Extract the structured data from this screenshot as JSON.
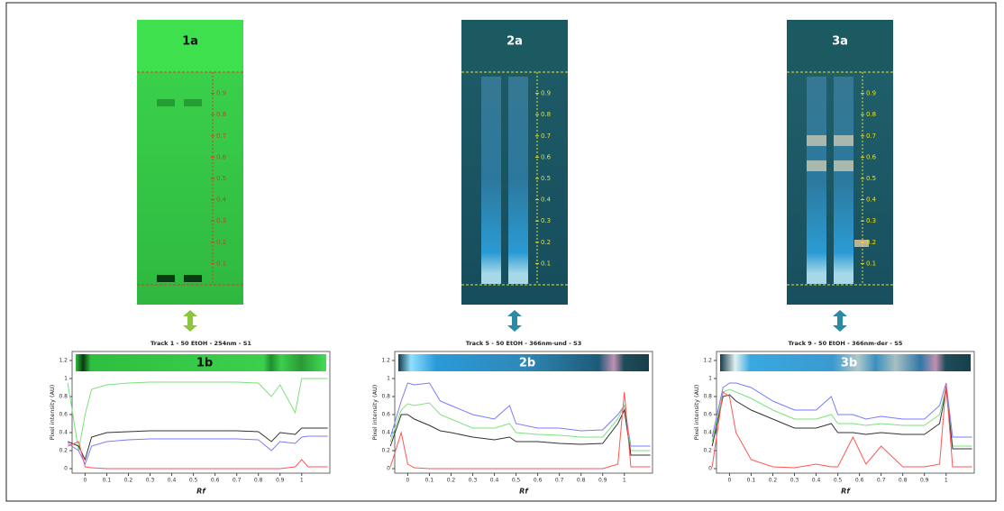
{
  "plates": [
    {
      "label": "1a",
      "rf_ticks": [
        0.1,
        0.2,
        0.3,
        0.4,
        0.5,
        0.6,
        0.7,
        0.8,
        0.9
      ],
      "scale_color": "#d83a2a"
    },
    {
      "label": "2a",
      "rf_ticks": [
        0.1,
        0.2,
        0.3,
        0.4,
        0.5,
        0.6,
        0.7,
        0.8,
        0.9
      ],
      "scale_color": "#e8e030"
    },
    {
      "label": "3a",
      "rf_ticks": [
        0.1,
        0.2,
        0.3,
        0.4,
        0.5,
        0.6,
        0.7,
        0.8,
        0.9
      ],
      "scale_color": "#e8e030"
    }
  ],
  "chart_data": [
    {
      "type": "line",
      "title": "Track 1 - 50 EtOH - 254nm - S1",
      "panel_label": "1b",
      "ylabel": "Pixel intensity (AU)",
      "xlabel": "Rf",
      "xlim": [
        -0.06,
        1.13
      ],
      "ylim": [
        -0.05,
        1.3
      ],
      "xticks": [
        0,
        0.1,
        0.2,
        0.3,
        0.4,
        0.5,
        0.6,
        0.7,
        0.8,
        0.9,
        1
      ],
      "yticks": [
        0,
        0.2,
        0.4,
        0.6,
        0.8,
        1,
        1.2
      ],
      "x": [
        -0.08,
        -0.03,
        0,
        0.03,
        0.1,
        0.2,
        0.3,
        0.4,
        0.5,
        0.6,
        0.7,
        0.8,
        0.86,
        0.9,
        0.97,
        1,
        1.03,
        1.12
      ],
      "series": [
        {
          "color": "#7ee07e",
          "values": [
            0.95,
            0.2,
            0.6,
            0.88,
            0.93,
            0.95,
            0.96,
            0.96,
            0.96,
            0.96,
            0.96,
            0.95,
            0.8,
            0.93,
            0.62,
            1.0,
            1.0,
            1.0
          ]
        },
        {
          "color": "#333333",
          "values": [
            0.3,
            0.25,
            0.1,
            0.35,
            0.4,
            0.41,
            0.42,
            0.42,
            0.42,
            0.42,
            0.42,
            0.41,
            0.3,
            0.4,
            0.38,
            0.45,
            0.45,
            0.45
          ]
        },
        {
          "color": "#7a7aff",
          "values": [
            0.28,
            0.2,
            0.05,
            0.25,
            0.3,
            0.32,
            0.33,
            0.33,
            0.33,
            0.33,
            0.33,
            0.32,
            0.2,
            0.3,
            0.28,
            0.35,
            0.36,
            0.36
          ]
        },
        {
          "color": "#ff5555",
          "values": [
            0.25,
            0.3,
            0.02,
            0.01,
            0,
            0,
            0,
            0,
            0,
            0,
            0,
            0,
            0,
            0,
            0.02,
            0.1,
            0.02,
            0.02
          ]
        }
      ]
    },
    {
      "type": "line",
      "title": "Track 5 - 50 EtOH - 366nm-und - S3",
      "panel_label": "2b",
      "ylabel": "Pixel intensity (AU)",
      "xlabel": "Rf",
      "xlim": [
        -0.06,
        1.13
      ],
      "ylim": [
        -0.05,
        1.3
      ],
      "xticks": [
        0,
        0.1,
        0.2,
        0.3,
        0.4,
        0.5,
        0.6,
        0.7,
        0.8,
        0.9,
        1
      ],
      "yticks": [
        0,
        0.2,
        0.4,
        0.6,
        0.8,
        1,
        1.2
      ],
      "x": [
        -0.08,
        -0.03,
        0,
        0.03,
        0.1,
        0.15,
        0.2,
        0.3,
        0.4,
        0.47,
        0.5,
        0.6,
        0.7,
        0.8,
        0.9,
        0.97,
        1,
        1.03,
        1.12
      ],
      "series": [
        {
          "color": "#7a7aff",
          "values": [
            0.35,
            0.75,
            0.95,
            0.93,
            0.95,
            0.75,
            0.7,
            0.6,
            0.55,
            0.7,
            0.5,
            0.45,
            0.45,
            0.42,
            0.43,
            0.6,
            0.7,
            0.25,
            0.25
          ]
        },
        {
          "color": "#7ee07e",
          "values": [
            0.3,
            0.65,
            0.72,
            0.7,
            0.73,
            0.6,
            0.55,
            0.45,
            0.45,
            0.5,
            0.4,
            0.38,
            0.37,
            0.35,
            0.35,
            0.55,
            0.7,
            0.2,
            0.2
          ]
        },
        {
          "color": "#333333",
          "values": [
            0.25,
            0.6,
            0.6,
            0.55,
            0.48,
            0.42,
            0.4,
            0.35,
            0.32,
            0.35,
            0.3,
            0.3,
            0.28,
            0.27,
            0.28,
            0.5,
            0.65,
            0.15,
            0.15
          ]
        },
        {
          "color": "#ff5555",
          "values": [
            0.02,
            0.4,
            0.05,
            0.01,
            0,
            0,
            0,
            0,
            0,
            0,
            0,
            0,
            0,
            0,
            0,
            0.05,
            0.85,
            0.02,
            0.02
          ]
        }
      ]
    },
    {
      "type": "line",
      "title": "Track 9 - 50 EtOH - 366nm-der - S5",
      "panel_label": "3b",
      "ylabel": "Pixel intensity (AU)",
      "xlabel": "Rf",
      "xlim": [
        -0.06,
        1.13
      ],
      "ylim": [
        -0.05,
        1.3
      ],
      "xticks": [
        0,
        0.1,
        0.2,
        0.3,
        0.4,
        0.5,
        0.6,
        0.7,
        0.8,
        0.9,
        1
      ],
      "yticks": [
        0,
        0.2,
        0.4,
        0.6,
        0.8,
        1,
        1.2
      ],
      "x": [
        -0.08,
        -0.03,
        0,
        0.03,
        0.1,
        0.2,
        0.3,
        0.4,
        0.47,
        0.5,
        0.57,
        0.63,
        0.7,
        0.8,
        0.9,
        0.97,
        1,
        1.03,
        1.12
      ],
      "series": [
        {
          "color": "#7a7aff",
          "values": [
            0.35,
            0.9,
            0.95,
            0.95,
            0.9,
            0.75,
            0.65,
            0.65,
            0.8,
            0.6,
            0.6,
            0.55,
            0.58,
            0.55,
            0.55,
            0.7,
            0.95,
            0.35,
            0.35
          ]
        },
        {
          "color": "#7ee07e",
          "values": [
            0.3,
            0.85,
            0.88,
            0.85,
            0.78,
            0.65,
            0.55,
            0.55,
            0.6,
            0.5,
            0.5,
            0.48,
            0.5,
            0.48,
            0.48,
            0.6,
            0.9,
            0.25,
            0.25
          ]
        },
        {
          "color": "#333333",
          "values": [
            0.25,
            0.8,
            0.82,
            0.75,
            0.65,
            0.55,
            0.45,
            0.45,
            0.5,
            0.4,
            0.4,
            0.38,
            0.4,
            0.38,
            0.38,
            0.5,
            0.88,
            0.22,
            0.22
          ]
        },
        {
          "color": "#ff5555",
          "values": [
            0.02,
            0.85,
            0.8,
            0.4,
            0.1,
            0.02,
            0.01,
            0.05,
            0.02,
            0.02,
            0.35,
            0.05,
            0.25,
            0.02,
            0.02,
            0.05,
            0.95,
            0.02,
            0.02
          ]
        }
      ]
    }
  ]
}
